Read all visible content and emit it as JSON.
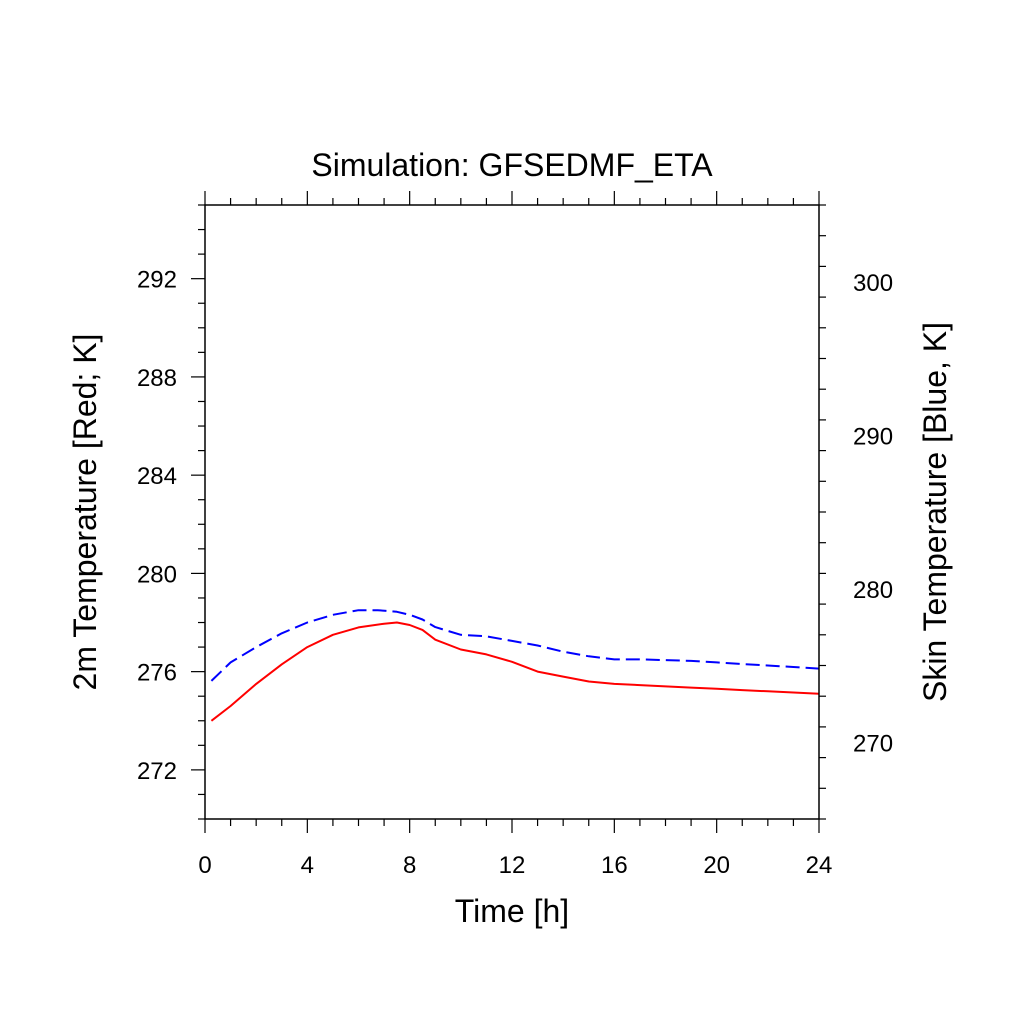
{
  "chart_data": {
    "type": "line",
    "title": "Simulation: GFSEDMF_ETA",
    "xlabel": "Time [h]",
    "ylabel_left": "2m Temperature [Red; K]",
    "ylabel_right": "Skin Temperature [Blue, K]",
    "xlim": [
      0,
      24
    ],
    "ylim_left": [
      270,
      295
    ],
    "ylim_right": [
      265,
      305
    ],
    "x_ticks": [
      0,
      4,
      8,
      12,
      16,
      20,
      24
    ],
    "y_ticks_left": [
      272,
      276,
      280,
      284,
      288,
      292
    ],
    "y_ticks_right": [
      270,
      280,
      290,
      300
    ],
    "grid": false,
    "series": [
      {
        "axis": "left",
        "color": "#ff0000",
        "dash": "solid",
        "x": [
          0.25,
          1,
          2,
          3,
          4,
          5,
          6,
          7,
          7.5,
          8,
          8.5,
          9,
          10,
          11,
          12,
          13,
          14,
          15,
          16,
          17,
          18,
          19,
          20,
          21,
          22,
          23,
          24
        ],
        "y": [
          274.0,
          274.6,
          275.5,
          276.3,
          277.0,
          277.5,
          277.8,
          277.95,
          278.0,
          277.9,
          277.7,
          277.3,
          276.9,
          276.7,
          276.4,
          276.0,
          275.8,
          275.6,
          275.5,
          275.45,
          275.4,
          275.35,
          275.3,
          275.25,
          275.2,
          275.15,
          275.1
        ]
      },
      {
        "axis": "right",
        "color": "#0000ff",
        "dash": "dashed",
        "x": [
          0.25,
          1,
          2,
          3,
          4,
          5,
          6,
          6.75,
          7.5,
          8,
          8.5,
          9,
          10,
          11,
          12,
          13,
          14,
          15,
          16,
          17,
          18,
          19,
          20,
          21,
          22,
          23,
          24
        ],
        "y": [
          274.0,
          275.2,
          276.2,
          277.1,
          277.8,
          278.3,
          278.6,
          278.6,
          278.5,
          278.3,
          278.0,
          277.5,
          277.0,
          276.9,
          276.6,
          276.3,
          275.9,
          275.6,
          275.4,
          275.4,
          275.35,
          275.3,
          275.2,
          275.1,
          275.0,
          274.9,
          274.8
        ]
      }
    ]
  }
}
